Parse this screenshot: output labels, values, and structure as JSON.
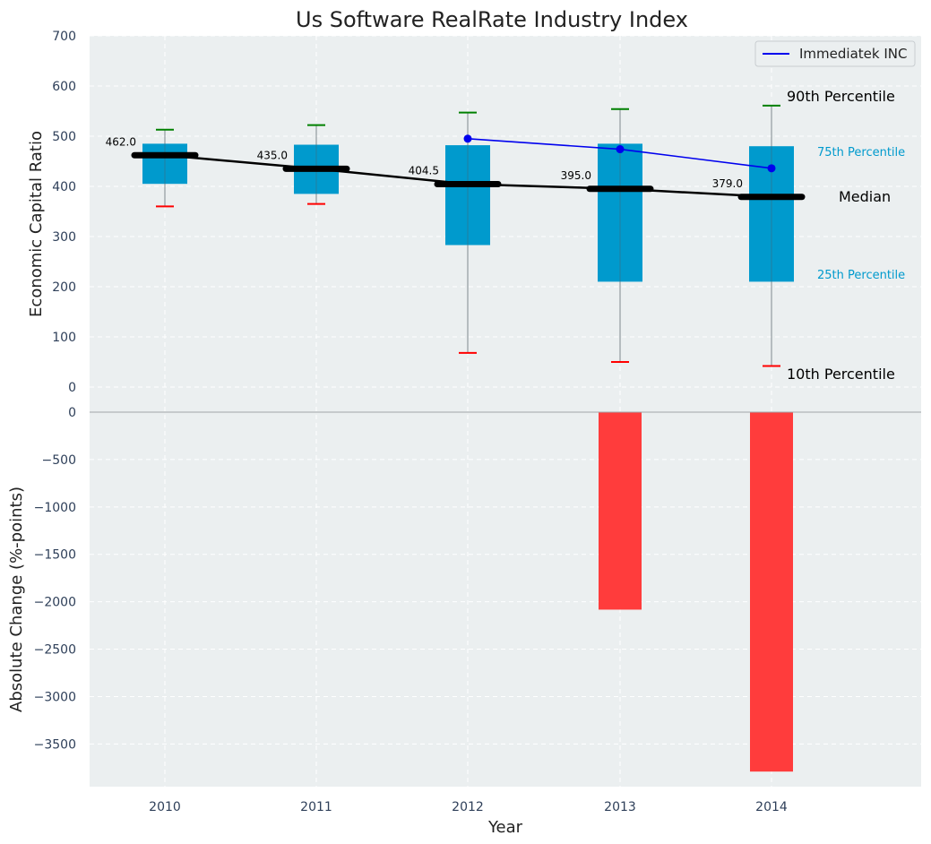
{
  "chart_data": [
    {
      "type": "box",
      "title": "Us Software RealRate Industry Index",
      "ylabel": "Economic Capital Ratio",
      "ylim": [
        0,
        700
      ],
      "yticks": [
        0,
        100,
        200,
        300,
        400,
        500,
        600,
        700
      ],
      "grid": true,
      "categories": [
        "2010",
        "2011",
        "2012",
        "2013",
        "2014"
      ],
      "p10": [
        360,
        365,
        68,
        50,
        42
      ],
      "p25": [
        405,
        385,
        283,
        210,
        210
      ],
      "median": [
        462.0,
        435.0,
        404.5,
        395.0,
        379.0
      ],
      "median_labels": [
        "462.0",
        "435.0",
        "404.5",
        "395.0",
        "379.0"
      ],
      "p75": [
        485,
        483,
        482,
        485,
        480
      ],
      "p90": [
        513,
        522,
        547,
        554,
        561
      ],
      "series": [
        {
          "name": "Immediatek INC",
          "x": [
            "2012",
            "2013",
            "2014"
          ],
          "values": [
            495,
            474,
            436
          ],
          "color": "#0000ee"
        }
      ],
      "legend": {
        "position": "top-right",
        "entries": [
          "Immediatek INC"
        ]
      },
      "annotations": {
        "p90": "90th Percentile",
        "p75": "75th Percentile",
        "median": "Median",
        "p25": "25th Percentile",
        "p10": "10th Percentile"
      },
      "colors": {
        "box": "#009acd",
        "median": "#000000",
        "p90_whisker": "#008000",
        "p10_whisker": "#ff0000",
        "annotation_small": "#009acd",
        "background": "#ebeff0"
      }
    },
    {
      "type": "bar",
      "ylabel": "Absolute Change (%-points)",
      "xlabel": "Year",
      "ylim": [
        -3950,
        0
      ],
      "yticks": [
        0,
        -500,
        -1000,
        -1500,
        -2000,
        -2500,
        -3000,
        -3500
      ],
      "categories": [
        "2010",
        "2011",
        "2012",
        "2013",
        "2014"
      ],
      "values": [
        null,
        null,
        null,
        -2083,
        -3791
      ],
      "colors": {
        "bar": "#ff3c3c"
      }
    }
  ]
}
